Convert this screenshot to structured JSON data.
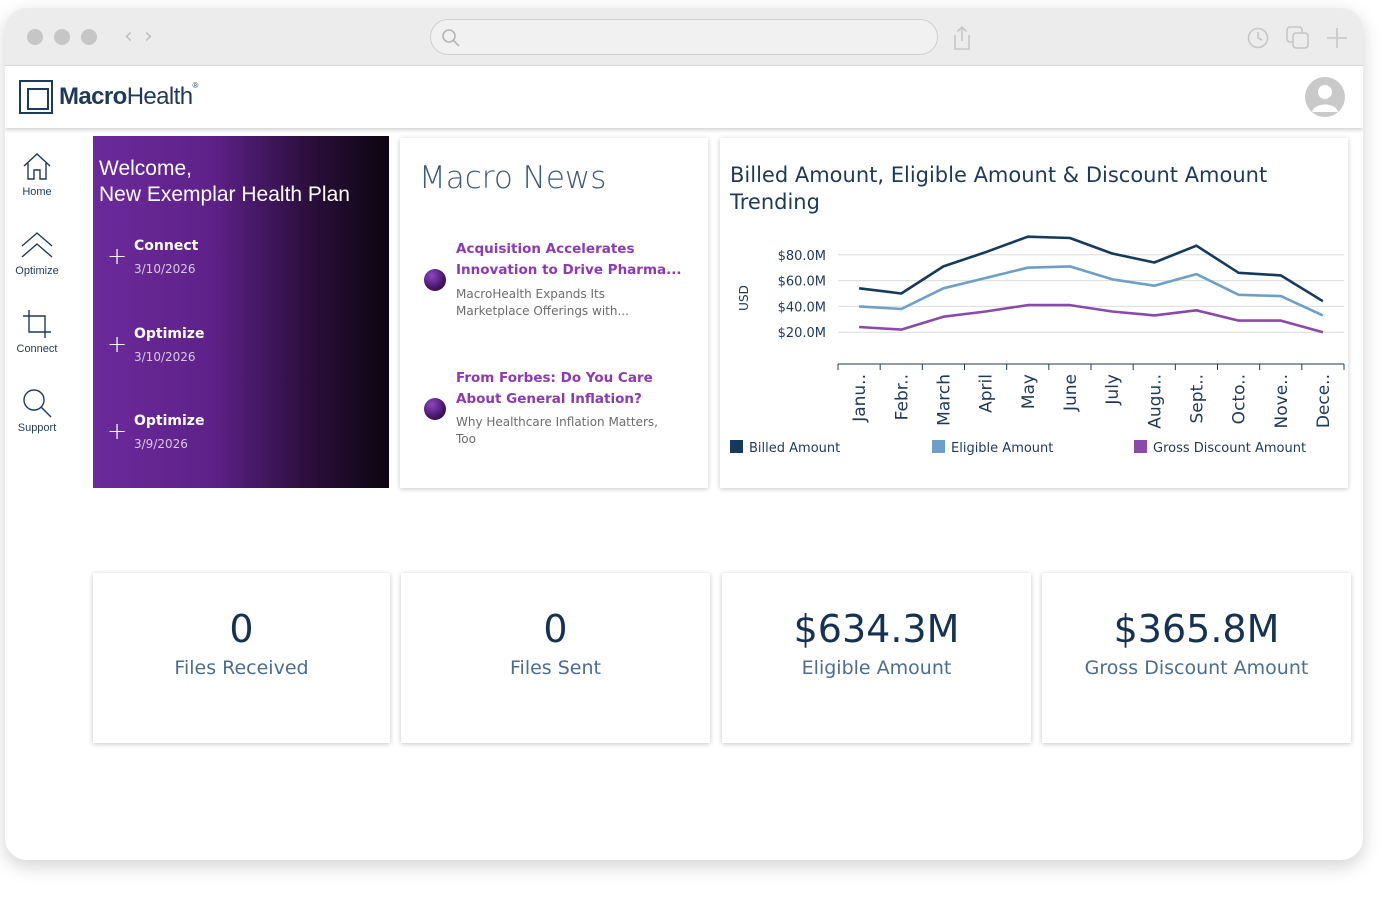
{
  "app": {
    "logo_bold": "Macro",
    "logo_light": "Health",
    "logo_mark": "®"
  },
  "sidebar": {
    "items": [
      {
        "label": "Home",
        "icon": "home-icon"
      },
      {
        "label": "Optimize",
        "icon": "double-chevron-up-icon"
      },
      {
        "label": "Connect",
        "icon": "crop-icon"
      },
      {
        "label": "Support",
        "icon": "search-icon"
      }
    ]
  },
  "welcome": {
    "line1": "Welcome,",
    "line2": "New Exemplar Health Plan",
    "activities": [
      {
        "name": "Connect",
        "date": "3/10/2026",
        "icon": "plus-icon"
      },
      {
        "name": "Optimize",
        "date": "3/10/2026",
        "icon": "plus-icon"
      },
      {
        "name": "Optimize",
        "date": "3/9/2026",
        "icon": "plus-icon"
      }
    ]
  },
  "news": {
    "title": "Macro News",
    "items": [
      {
        "headline_l1": "Acquisition Accelerates",
        "headline_l2": "Innovation to Drive Pharma...",
        "sub_l1": "MacroHealth Expands Its",
        "sub_l2": "Marketplace Offerings with..."
      },
      {
        "headline_l1": "From Forbes: Do You Care",
        "headline_l2": "About General Inflation?",
        "sub_l1": "Why Healthcare Inflation Matters,",
        "sub_l2": "Too"
      }
    ]
  },
  "chart": {
    "title_l1": "Billed Amount, Eligible Amount & Discount Amount",
    "title_l2": "Trending"
  },
  "chart_data": {
    "type": "line",
    "title": "Billed Amount, Eligible Amount & Discount Amount Trending",
    "ylabel": "USD",
    "xlabel": "",
    "categories": [
      "Janu..",
      "Febr..",
      "March",
      "April",
      "May",
      "June",
      "July",
      "Augu..",
      "Sept..",
      "Octo..",
      "Nove..",
      "Dece.."
    ],
    "y_ticks": [
      "$20.0M",
      "$40.0M",
      "$60.0M",
      "$80.0M"
    ],
    "y_tick_values": [
      20,
      40,
      60,
      80
    ],
    "ylim": [
      0,
      93
    ],
    "grid": true,
    "legend_position": "bottom",
    "series": [
      {
        "name": "Billed Amount",
        "color": "#163a5c",
        "values": [
          54,
          50,
          71,
          82,
          94,
          93,
          81,
          74,
          87,
          66,
          64,
          44
        ]
      },
      {
        "name": "Eligible Amount",
        "color": "#6e9fc6",
        "values": [
          40,
          38,
          54,
          62,
          70,
          71,
          61,
          56,
          65,
          49,
          48,
          33
        ]
      },
      {
        "name": "Gross Discount Amount",
        "color": "#8a4aa8",
        "values": [
          24,
          22,
          32,
          36,
          41,
          41,
          36,
          33,
          37,
          29,
          29,
          20
        ]
      }
    ]
  },
  "kpis": [
    {
      "value": "0",
      "label": "Files Received"
    },
    {
      "value": "0",
      "label": "Files Sent"
    },
    {
      "value": "$634.3M",
      "label": "Eligible Amount"
    },
    {
      "value": "$365.8M",
      "label": "Gross Discount Amount"
    }
  ]
}
